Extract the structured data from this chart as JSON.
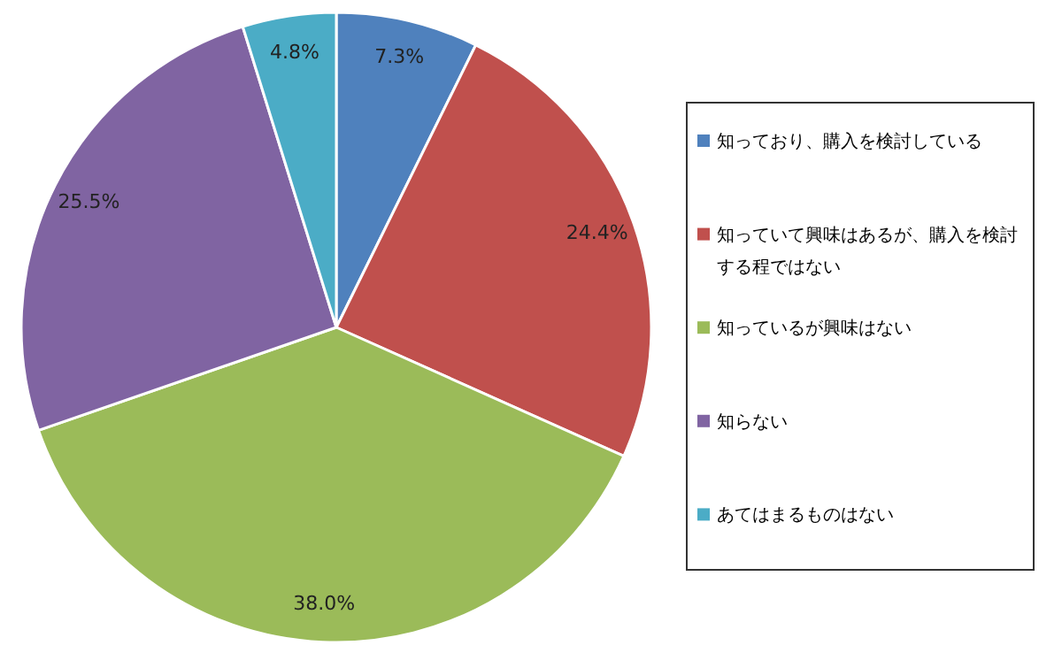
{
  "chart_data": {
    "type": "pie",
    "categories": [
      "知っており、購入を検討している",
      "知っていて興味はあるが、購入を検討する程ではない",
      "知っているが興味はない",
      "知らない",
      "あてはまるものはない"
    ],
    "values": [
      7.3,
      24.4,
      38.0,
      25.5,
      4.8
    ],
    "colors": [
      "#4f81bd",
      "#c0504d",
      "#9bbb59",
      "#8064a2",
      "#4bacc6"
    ],
    "value_labels": [
      "7.3%",
      "24.4%",
      "38.0%",
      "25.5%",
      "4.8%"
    ],
    "legend": "right"
  }
}
